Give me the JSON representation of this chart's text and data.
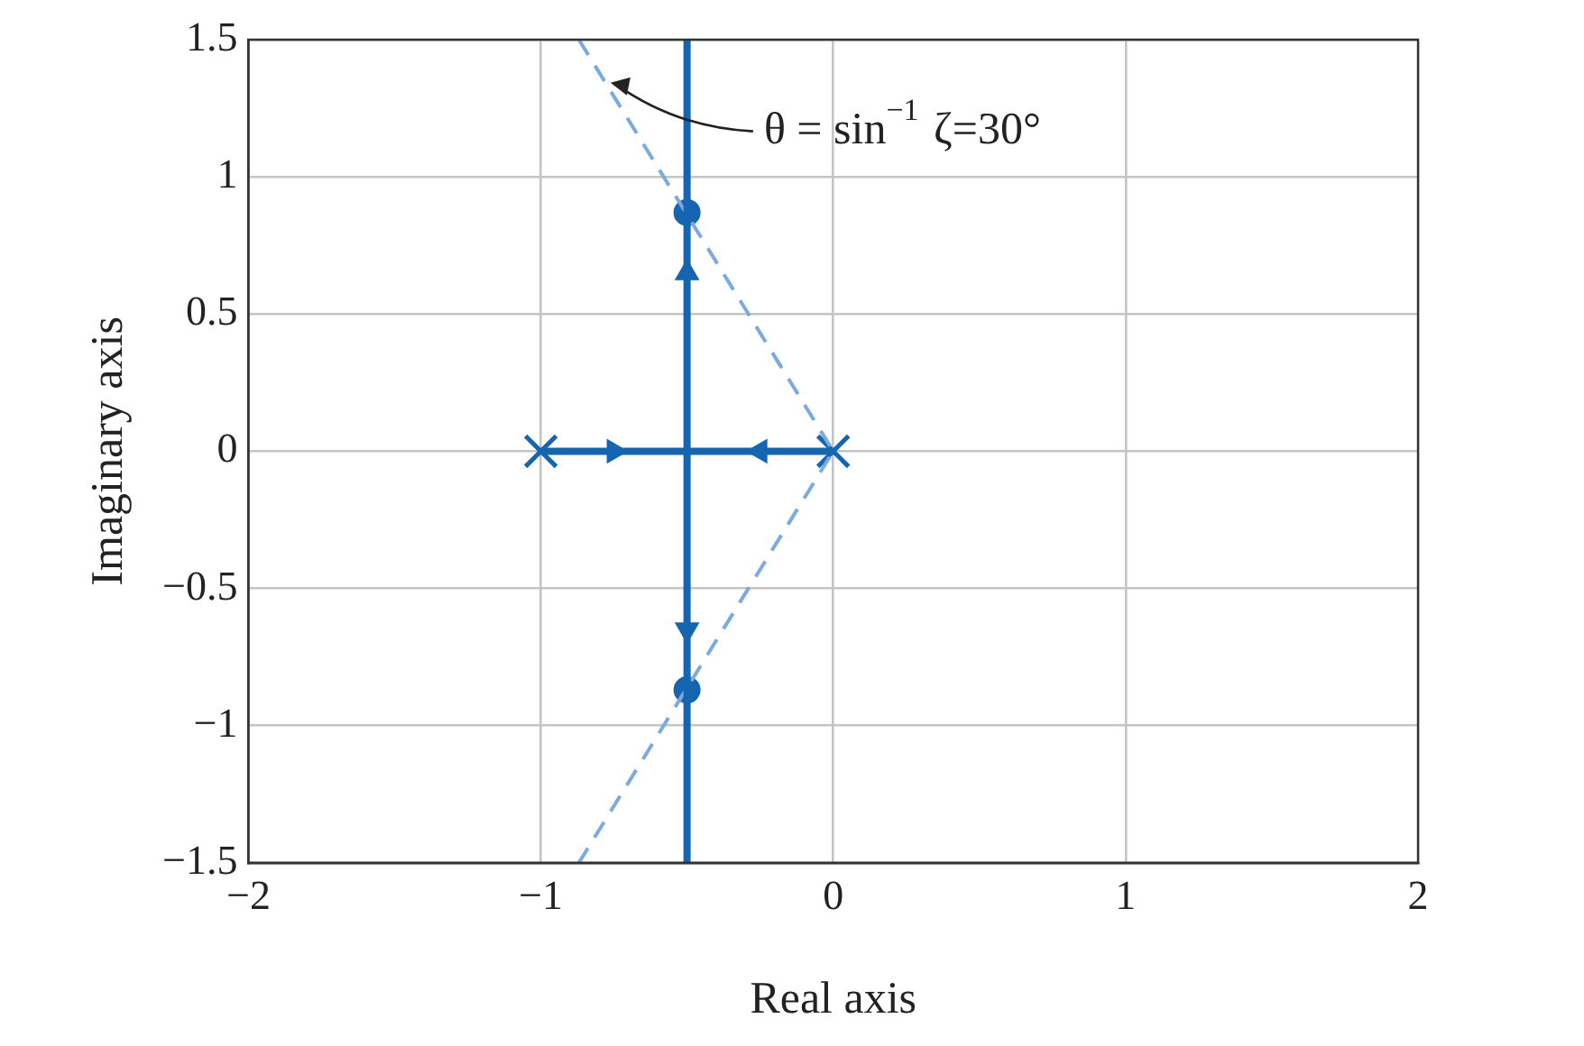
{
  "chart_data": {
    "type": "line",
    "xlabel": "Real axis",
    "ylabel": "Imaginary axis",
    "xlim": [
      -2,
      2
    ],
    "ylim": [
      -1.5,
      1.5
    ],
    "xticks": [
      {
        "value": -2,
        "label": "−2"
      },
      {
        "value": -1,
        "label": "−1"
      },
      0,
      1,
      2
    ],
    "yticks": [
      {
        "value": -1.5,
        "label": "−1.5"
      },
      {
        "value": -1,
        "label": "−1"
      },
      {
        "value": -0.5,
        "label": "−0.5"
      },
      0,
      0.5,
      1,
      1.5
    ],
    "grid": true,
    "legend": false,
    "annotations": [
      {
        "text": "θ = sin$^{−1}$ ζ=30°",
        "x": -0.78,
        "y": 1.35
      }
    ],
    "series": [
      {
        "color": "#1565b0",
        "x": [
          -1,
          0
        ],
        "values": [
          0,
          0
        ]
      },
      {
        "color": "#1565b0",
        "x": [
          -0.5,
          -0.5
        ],
        "values": [
          -1.5,
          1.5
        ]
      },
      {
        "color": "#7aaadf",
        "line_style": "dashed",
        "x": [
          -0.87,
          0,
          -0.87
        ],
        "values": [
          1.5,
          0,
          -1.5
        ]
      },
      {
        "type": "scatter",
        "color": "#1565b0",
        "marker": "cross",
        "x": [
          -1,
          0
        ],
        "values": [
          0,
          0
        ]
      },
      {
        "type": "scatter",
        "color": "#1565b0",
        "marker": "circle",
        "x": [
          -0.5,
          -0.5
        ],
        "values": [
          0.87,
          -0.87
        ]
      },
      {
        "type": "scatter",
        "color": "#1565b0",
        "marker": "triangle",
        "x": [
          -0.75,
          -0.25,
          -0.5,
          -0.5
        ],
        "values": [
          0,
          0,
          0.65,
          -0.65
        ]
      }
    ]
  }
}
